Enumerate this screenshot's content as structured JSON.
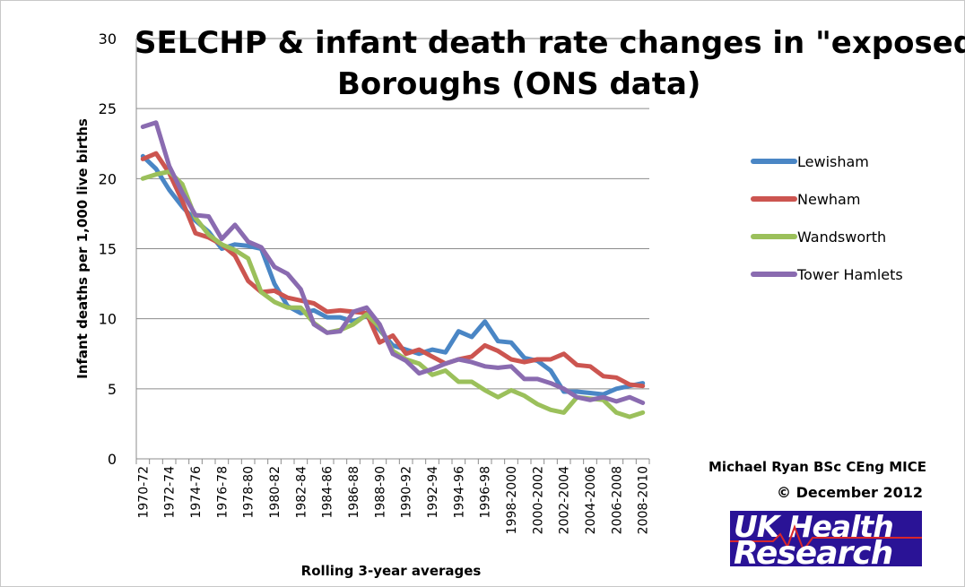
{
  "chart_data": {
    "type": "line",
    "title": "SELCHP & infant death rate changes in \"exposed\" Boroughs (ONS data)",
    "title_lines": [
      "SELCHP & infant death rate changes in \"exposed\"",
      "Boroughs (ONS data)"
    ],
    "xlabel": "Rolling 3-year averages",
    "ylabel": "Infant deaths per 1,000 live births",
    "ylim": [
      0,
      30
    ],
    "yticks": [
      0,
      5,
      10,
      15,
      20,
      25,
      30
    ],
    "grid": "horizontal",
    "legend_position": "right",
    "categories": [
      "1970-72",
      "1971-73",
      "1972-74",
      "1973-75",
      "1974-76",
      "1975-77",
      "1976-78",
      "1977-79",
      "1978-80",
      "1979-81",
      "1980-82",
      "1981-83",
      "1982-84",
      "1983-85",
      "1984-86",
      "1985-87",
      "1986-88",
      "1987-89",
      "1988-90",
      "1989-91",
      "1990-92",
      "1991-93",
      "1992-94",
      "1993-95",
      "1994-96",
      "1995-97",
      "1996-98",
      "1997-99",
      "1998-2000",
      "1999-2001",
      "2000-2002",
      "2001-2003",
      "2002-2004",
      "2003-2005",
      "2004-2006",
      "2005-2007",
      "2006-2008",
      "2007-2009",
      "2008-2010"
    ],
    "tick_labels": [
      "1970-72",
      "1972-74",
      "1974-76",
      "1976-78",
      "1978-80",
      "1980-82",
      "1982-84",
      "1984-86",
      "1986-88",
      "1988-90",
      "1990-92",
      "1992-94",
      "1994-96",
      "1996-98",
      "1998-2000",
      "2000-2002",
      "2002-2004",
      "2004-2006",
      "2006-2008",
      "2008-2010"
    ],
    "series": [
      {
        "name": "Lewisham",
        "color": "#4a86c5",
        "values": [
          21.6,
          20.7,
          19.2,
          18.0,
          17.0,
          16.2,
          15.0,
          15.3,
          15.2,
          15.0,
          12.5,
          10.9,
          10.4,
          10.6,
          10.1,
          10.1,
          9.8,
          10.2,
          9.2,
          8.1,
          7.8,
          7.5,
          7.8,
          7.6,
          9.1,
          8.7,
          9.8,
          8.4,
          8.3,
          7.2,
          7.0,
          6.3,
          4.8,
          4.8,
          4.7,
          4.6,
          5.0,
          5.2,
          5.4
        ]
      },
      {
        "name": "Newham",
        "color": "#cc5550",
        "values": [
          21.4,
          21.8,
          20.4,
          18.4,
          16.1,
          15.8,
          15.3,
          14.5,
          12.7,
          11.9,
          12.0,
          11.5,
          11.3,
          11.1,
          10.5,
          10.6,
          10.5,
          10.4,
          8.3,
          8.8,
          7.5,
          7.8,
          7.3,
          6.8,
          7.1,
          7.3,
          8.1,
          7.7,
          7.1,
          6.9,
          7.1,
          7.1,
          7.5,
          6.7,
          6.6,
          5.9,
          5.8,
          5.3,
          5.2
        ]
      },
      {
        "name": "Wandsworth",
        "color": "#9bc05b",
        "values": [
          20.0,
          20.3,
          20.5,
          19.6,
          17.2,
          16.0,
          15.3,
          14.9,
          14.3,
          11.9,
          11.2,
          10.8,
          10.8,
          9.7,
          9.0,
          9.2,
          9.6,
          10.3,
          9.4,
          7.7,
          7.1,
          6.8,
          6.0,
          6.3,
          5.5,
          5.5,
          4.9,
          4.4,
          4.9,
          4.5,
          3.9,
          3.5,
          3.3,
          4.4,
          4.3,
          4.2,
          3.3,
          3.0,
          3.3
        ]
      },
      {
        "name": "Tower Hamlets",
        "color": "#8a6bb0",
        "values": [
          23.7,
          24.0,
          20.9,
          19.0,
          17.4,
          17.3,
          15.7,
          16.7,
          15.5,
          15.1,
          13.7,
          13.2,
          12.1,
          9.6,
          9.0,
          9.1,
          10.5,
          10.8,
          9.6,
          7.5,
          7.0,
          6.1,
          6.4,
          6.8,
          7.1,
          6.9,
          6.6,
          6.5,
          6.6,
          5.7,
          5.7,
          5.4,
          5.0,
          4.4,
          4.2,
          4.4,
          4.1,
          4.4,
          4.0
        ]
      }
    ]
  },
  "credit": {
    "author": "Michael Ryan BSc CEng MICE",
    "date": "© December 2012"
  },
  "logo": {
    "line1": "UK Health",
    "line2": "Research",
    "background": "#2a1396",
    "pulse_color": "#d8262b"
  }
}
